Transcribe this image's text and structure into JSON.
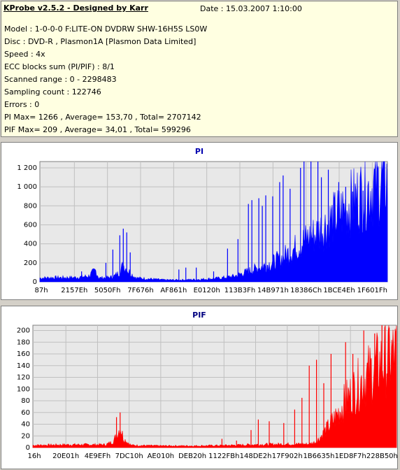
{
  "header": {
    "title": "KProbe v2.5.2 - Designed by Karr",
    "date": "Date : 15.03.2007 1:10:00",
    "lines": [
      "Model : 1-0-0-0 F:LITE-ON DVDRW SHW-16H5S  LS0W",
      "Disc : DVD-R , Plasmon1A [Plasmon Data Limited]",
      "Speed : 4x",
      "ECC blocks sum (PI/PIF) : 8/1",
      "Scanned range : 0 - 2298483",
      "Sampling count : 122746",
      "Errors : 0",
      "PI Max= 1266 , Average= 153,70 , Total= 2707142",
      "PIF Max= 209 , Average= 34,01 , Total= 599296"
    ]
  },
  "colors": {
    "pi": "#0000ff",
    "pif": "#ff0000",
    "plot_bg": "#e8e8e8",
    "grid": "#c0c0c0"
  },
  "chart_data": [
    {
      "type": "area",
      "title": "PI",
      "ylim": [
        0,
        1266
      ],
      "yticks": [
        0,
        200,
        400,
        600,
        800,
        1000,
        1200
      ],
      "ytick_labels": [
        "0",
        "200",
        "400",
        "600",
        "800",
        "1 000",
        "1 200"
      ],
      "xtick_labels": [
        "87h",
        "2157Eh",
        "5050Fh",
        "7F676h",
        "AF861h",
        "E0120h",
        "113B3Fh",
        "14B971h",
        "18386Ch",
        "1BCE4Eh",
        "1F601Fh"
      ],
      "grid": true,
      "profile": [
        [
          0,
          40
        ],
        [
          4,
          45
        ],
        [
          10,
          45
        ],
        [
          14,
          60
        ],
        [
          16,
          120
        ],
        [
          17,
          40
        ],
        [
          21,
          50
        ],
        [
          23,
          100
        ],
        [
          24,
          180
        ],
        [
          25,
          130
        ],
        [
          27,
          60
        ],
        [
          28,
          40
        ],
        [
          32,
          30
        ],
        [
          36,
          20
        ],
        [
          40,
          20
        ],
        [
          45,
          25
        ],
        [
          48,
          30
        ],
        [
          52,
          40
        ],
        [
          56,
          60
        ],
        [
          60,
          110
        ],
        [
          64,
          160
        ],
        [
          67,
          200
        ],
        [
          70,
          260
        ],
        [
          73,
          340
        ],
        [
          76,
          430
        ],
        [
          80,
          520
        ],
        [
          84,
          650
        ],
        [
          88,
          780
        ],
        [
          92,
          900
        ],
        [
          96,
          1000
        ],
        [
          100,
          1080
        ]
      ],
      "spikes": [
        [
          12,
          110
        ],
        [
          19,
          200
        ],
        [
          21,
          340
        ],
        [
          23,
          490
        ],
        [
          24,
          560
        ],
        [
          25,
          520
        ],
        [
          26,
          310
        ],
        [
          40,
          130
        ],
        [
          42,
          150
        ],
        [
          45,
          150
        ],
        [
          50,
          110
        ],
        [
          54,
          350
        ],
        [
          57,
          450
        ],
        [
          60,
          820
        ],
        [
          61,
          860
        ],
        [
          63,
          880
        ],
        [
          64,
          800
        ],
        [
          65,
          910
        ],
        [
          67,
          900
        ],
        [
          69,
          1050
        ],
        [
          70,
          1120
        ],
        [
          72,
          980
        ],
        [
          75,
          1200
        ],
        [
          76,
          1266
        ],
        [
          78,
          1266
        ],
        [
          80,
          1266
        ],
        [
          81,
          1100
        ],
        [
          83,
          1180
        ],
        [
          86,
          1050
        ],
        [
          88,
          1000
        ],
        [
          90,
          950
        ],
        [
          93,
          960
        ],
        [
          97,
          1000
        ]
      ]
    },
    {
      "type": "area",
      "title": "PIF",
      "ylim": [
        0,
        209
      ],
      "yticks": [
        0,
        20,
        40,
        60,
        80,
        100,
        120,
        140,
        160,
        180,
        200
      ],
      "ytick_labels": [
        "0",
        "20",
        "40",
        "60",
        "80",
        "100",
        "120",
        "140",
        "160",
        "180",
        "200"
      ],
      "xtick_labels": [
        "16h",
        "20E01h",
        "4E9EFh",
        "7DC10h",
        "AE010h",
        "DEB20h",
        "1122FBh",
        "148DE2h",
        "17F902h",
        "1B6635h",
        "1ED8F7h",
        "228B50h"
      ],
      "grid": true,
      "profile": [
        [
          0,
          4
        ],
        [
          10,
          5
        ],
        [
          20,
          5
        ],
        [
          22,
          10
        ],
        [
          23,
          20
        ],
        [
          24,
          35
        ],
        [
          25,
          15
        ],
        [
          27,
          4
        ],
        [
          35,
          3
        ],
        [
          45,
          3
        ],
        [
          55,
          4
        ],
        [
          60,
          5
        ],
        [
          70,
          6
        ],
        [
          76,
          6
        ],
        [
          78,
          10
        ],
        [
          80,
          25
        ],
        [
          83,
          50
        ],
        [
          86,
          80
        ],
        [
          90,
          110
        ],
        [
          94,
          135
        ],
        [
          97,
          150
        ],
        [
          100,
          160
        ]
      ],
      "spikes": [
        [
          23,
          52
        ],
        [
          24,
          60
        ],
        [
          52,
          15
        ],
        [
          56,
          12
        ],
        [
          60,
          30
        ],
        [
          62,
          48
        ],
        [
          65,
          45
        ],
        [
          69,
          42
        ],
        [
          72,
          65
        ],
        [
          74,
          85
        ],
        [
          76,
          140
        ],
        [
          78,
          150
        ],
        [
          80,
          110
        ],
        [
          82,
          160
        ],
        [
          86,
          180
        ],
        [
          88,
          160
        ],
        [
          91,
          200
        ],
        [
          94,
          195
        ],
        [
          96,
          209
        ],
        [
          98,
          205
        ]
      ]
    }
  ]
}
